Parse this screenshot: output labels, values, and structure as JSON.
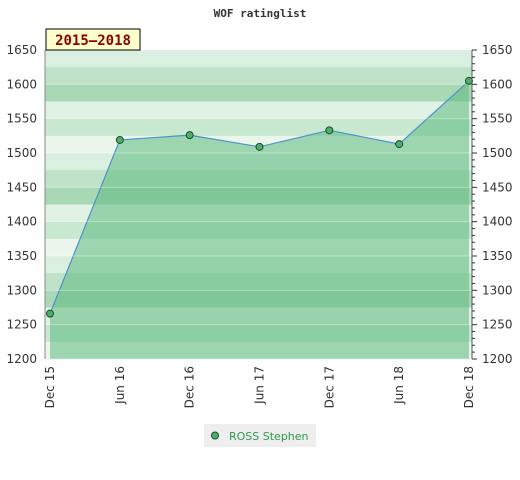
{
  "chart_data": {
    "type": "area",
    "title": "WOF ratinglist",
    "badge": "2015–2018",
    "x": [
      "Dec 15",
      "Jun 16",
      "Dec 16",
      "Jun 17",
      "Dec 17",
      "Jun 18",
      "Dec 18"
    ],
    "series": [
      {
        "name": "ROSS Stephen",
        "values": [
          1266,
          1519,
          1526,
          1509,
          1533,
          1513,
          1605
        ]
      }
    ],
    "ylim": [
      1200,
      1650
    ],
    "yticks": [
      1200,
      1250,
      1300,
      1350,
      1400,
      1450,
      1500,
      1550,
      1600,
      1650
    ],
    "xlabel": "",
    "ylabel": "",
    "legend": "bottom-center",
    "colors": {
      "fill": "#5dba80",
      "line": "#4f8fcf",
      "marker": "#4caf6a",
      "legend_text": "#2e9a4e",
      "badge_bg": "#ffffcc",
      "badge_text": "#8b0000"
    }
  }
}
